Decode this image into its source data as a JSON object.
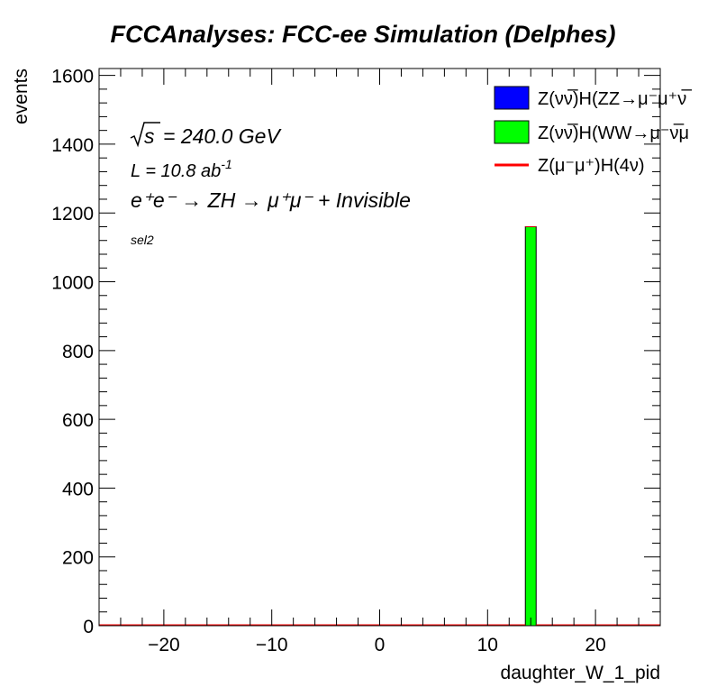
{
  "chart_data": {
    "type": "bar",
    "title": "FCCAnalyses: FCC-ee Simulation (Delphes)",
    "xlabel": "daughter_W_1_pid",
    "ylabel": "events",
    "xlim": [
      -26,
      26
    ],
    "ylim": [
      0,
      1620
    ],
    "x_ticks": [
      -20,
      -10,
      0,
      10,
      20
    ],
    "x_tick_labels": [
      "−20",
      "−10",
      "0",
      "10",
      "20"
    ],
    "y_ticks": [
      0,
      200,
      400,
      600,
      800,
      1000,
      1200,
      1400,
      1600
    ],
    "y_tick_labels": [
      "0",
      "200",
      "400",
      "600",
      "800",
      "1000",
      "1200",
      "1400",
      "1600"
    ],
    "bins": {
      "low": -26,
      "high": 26,
      "width": 1
    },
    "series": [
      {
        "name": "Z(νν̅)H(ZZ→μ⁻μ⁺νν̅)",
        "kind": "stacked-fill",
        "color": "#0000ff",
        "bars": []
      },
      {
        "name": "Z(νν̅)H(WW→μ⁻ν̅μ⁺ν)",
        "kind": "stacked-fill",
        "color": "#00ff00",
        "bars": [
          {
            "x_low": 13.5,
            "x_high": 14.5,
            "value": 1160
          }
        ]
      },
      {
        "name": "Z(μ⁻μ⁺)H(4ν)",
        "kind": "line",
        "color": "#ff0000",
        "bars": []
      }
    ],
    "legend": {
      "position": "top-right",
      "entries": [
        {
          "label": "Z(νν̅)H(ZZ→μ⁻μ⁺ν̅",
          "color": "#0000ff",
          "marker": "box"
        },
        {
          "label": "Z(νν̅)H(WW→μ⁻ν̅μ",
          "color": "#00ff00",
          "marker": "box"
        },
        {
          "label": "Z(μ⁻μ⁺)H(4ν)",
          "color": "#ff0000",
          "marker": "line"
        }
      ]
    },
    "annotations": {
      "sqrt_s": "= 240.0 GeV",
      "sqrt_s_symbol": "s",
      "lumi_prefix": "L = 10.8 ab",
      "lumi_exp": "-1",
      "process": "e⁺e⁻ → ZH → μ⁺μ⁻ + Invisible",
      "selection": "sel2"
    },
    "grid": false
  }
}
